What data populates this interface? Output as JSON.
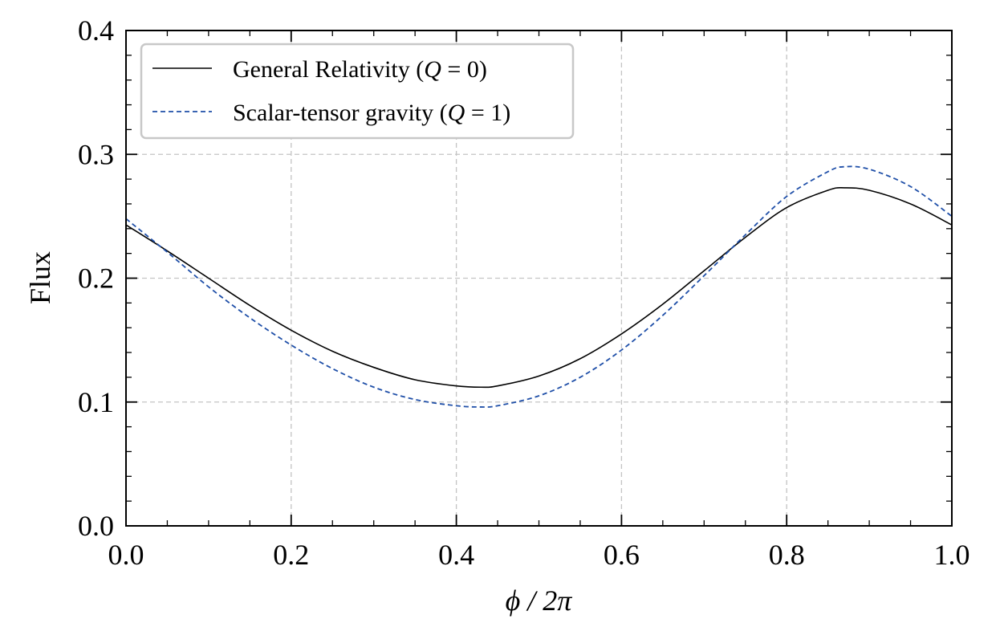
{
  "chart_data": {
    "type": "line",
    "title": "",
    "xlabel": "ϕ / 2π",
    "ylabel": "Flux",
    "xlim": [
      0.0,
      1.0
    ],
    "ylim": [
      0.0,
      0.4
    ],
    "xticks": [
      "0.0",
      "0.2",
      "0.4",
      "0.6",
      "0.8",
      "1.0"
    ],
    "yticks": [
      "0.0",
      "0.1",
      "0.2",
      "0.3",
      "0.4"
    ],
    "x_tick_values": [
      0.0,
      0.2,
      0.4,
      0.6,
      0.8,
      1.0
    ],
    "y_tick_values": [
      0.0,
      0.1,
      0.2,
      0.3,
      0.4
    ],
    "grid": true,
    "legend_position": "top-left",
    "series": [
      {
        "name": "General Relativity (Q = 0)",
        "legend_text": "General Relativity (",
        "legend_q": "Q",
        "legend_eq": " = 0)",
        "style": "solid",
        "color": "#000000",
        "x": [
          0.0,
          0.05,
          0.1,
          0.15,
          0.2,
          0.25,
          0.3,
          0.35,
          0.4,
          0.43,
          0.45,
          0.5,
          0.55,
          0.6,
          0.65,
          0.7,
          0.75,
          0.8,
          0.85,
          0.87,
          0.9,
          0.95,
          1.0
        ],
        "y": [
          0.243,
          0.222,
          0.2,
          0.178,
          0.158,
          0.141,
          0.128,
          0.118,
          0.113,
          0.112,
          0.113,
          0.121,
          0.135,
          0.155,
          0.179,
          0.206,
          0.233,
          0.257,
          0.271,
          0.273,
          0.271,
          0.26,
          0.243
        ]
      },
      {
        "name": "Scalar-tensor gravity (Q = 1)",
        "legend_text": "Scalar-tensor gravity (",
        "legend_q": "Q",
        "legend_eq": " = 1)",
        "style": "dashed",
        "color": "#1f4fa8",
        "x": [
          0.0,
          0.05,
          0.1,
          0.15,
          0.2,
          0.25,
          0.3,
          0.35,
          0.4,
          0.43,
          0.45,
          0.5,
          0.55,
          0.6,
          0.65,
          0.7,
          0.75,
          0.8,
          0.85,
          0.87,
          0.9,
          0.95,
          1.0
        ],
        "y": [
          0.248,
          0.221,
          0.193,
          0.168,
          0.146,
          0.127,
          0.112,
          0.102,
          0.097,
          0.096,
          0.097,
          0.105,
          0.12,
          0.142,
          0.17,
          0.202,
          0.235,
          0.266,
          0.286,
          0.29,
          0.288,
          0.274,
          0.25
        ]
      }
    ]
  }
}
